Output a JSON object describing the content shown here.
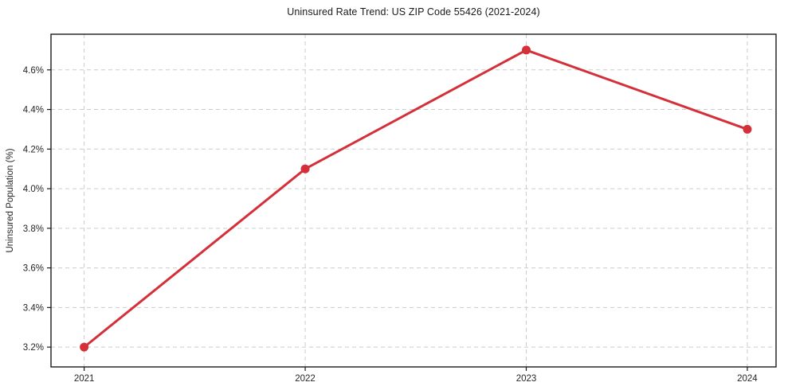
{
  "chart_data": {
    "type": "line",
    "title": "Uninsured Rate Trend: US ZIP Code 55426 (2021-2024)",
    "xlabel": "",
    "ylabel": "Uninsured Population (%)",
    "x": [
      2021,
      2022,
      2023,
      2024
    ],
    "values": [
      3.2,
      4.1,
      4.7,
      4.3
    ],
    "xlim": [
      2020.85,
      2024.13
    ],
    "ylim": [
      3.1,
      4.78
    ],
    "xticks": {
      "values": [
        2021,
        2022,
        2023,
        2024
      ],
      "labels": [
        "2021",
        "2022",
        "2023",
        "2024"
      ]
    },
    "yticks": {
      "values": [
        3.2,
        3.4,
        3.6,
        3.8,
        4.0,
        4.2,
        4.4,
        4.6
      ],
      "labels": [
        "3.2%",
        "3.4%",
        "3.6%",
        "3.8%",
        "4.0%",
        "4.2%",
        "4.4%",
        "4.6%"
      ]
    },
    "grid": true,
    "grid_style": "dashed",
    "legend": false,
    "marker": "circle",
    "colors": {
      "line": "#d4303a",
      "marker": "#d4303a",
      "grid": "#cccccc",
      "axis": "#1a1a1a",
      "text": "#262626",
      "background": "#ffffff"
    }
  }
}
